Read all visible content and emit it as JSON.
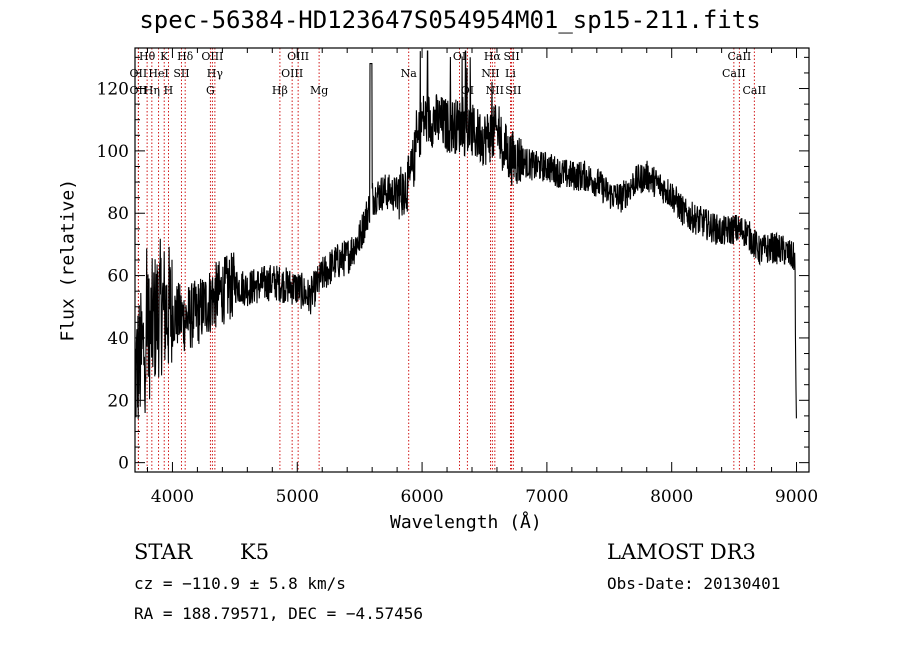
{
  "chart_data": {
    "type": "line",
    "title": "spec-56384-HD123647S054954M01_sp15-211.fits",
    "xlabel": "Wavelength (Å)",
    "ylabel": "Flux (relative)",
    "xlim": [
      3700,
      9100
    ],
    "ylim": [
      -3,
      133
    ],
    "x_ticks": [
      4000,
      5000,
      6000,
      7000,
      8000,
      9000
    ],
    "y_ticks": [
      0,
      20,
      40,
      60,
      80,
      100,
      120
    ],
    "x_tick_labels": [
      "4000",
      "5000",
      "6000",
      "7000",
      "8000",
      "9000"
    ],
    "y_tick_labels": [
      "0",
      "20",
      "40",
      "60",
      "80",
      "100",
      "120"
    ],
    "grid": false,
    "spectrum_envelope": {
      "x": [
        3700,
        3800,
        3900,
        4000,
        4100,
        4200,
        4300,
        4400,
        4500,
        4600,
        4700,
        4800,
        4900,
        5000,
        5100,
        5200,
        5300,
        5400,
        5500,
        5600,
        5700,
        5800,
        5900,
        6000,
        6100,
        6200,
        6300,
        6400,
        6500,
        6600,
        6700,
        6800,
        6900,
        7000,
        7100,
        7200,
        7300,
        7400,
        7500,
        7600,
        7700,
        7800,
        7900,
        8000,
        8100,
        8200,
        8300,
        8400,
        8500,
        8600,
        8700,
        8800,
        8900,
        9000
      ],
      "y": [
        28,
        40,
        50,
        48,
        46,
        48,
        52,
        55,
        57,
        56,
        57,
        58,
        57,
        56,
        53,
        60,
        64,
        66,
        72,
        85,
        87,
        86,
        90,
        110,
        110,
        108,
        108,
        106,
        104,
        106,
        98,
        97,
        95,
        95,
        93,
        92,
        92,
        90,
        86,
        85,
        90,
        92,
        89,
        86,
        80,
        78,
        76,
        74,
        75,
        74,
        68,
        69,
        68,
        65
      ]
    },
    "line_markers": [
      {
        "label": "OII",
        "x": 3727,
        "row": 2
      },
      {
        "label": "Hθ",
        "x": 3797,
        "row": 1
      },
      {
        "label": "OII",
        "x": 3727,
        "row": 3
      },
      {
        "label": "Hη",
        "x": 3835,
        "row": 3
      },
      {
        "label": "HeI",
        "x": 3889,
        "row": 2
      },
      {
        "label": "K",
        "x": 3934,
        "row": 1
      },
      {
        "label": "H",
        "x": 3968,
        "row": 3
      },
      {
        "label": "SII",
        "x": 4072,
        "row": 2
      },
      {
        "label": "Hδ",
        "x": 4102,
        "row": 1
      },
      {
        "label": "OIII",
        "x": 4320,
        "row": 1
      },
      {
        "label": "Hγ",
        "x": 4340,
        "row": 2
      },
      {
        "label": "G",
        "x": 4304,
        "row": 3
      },
      {
        "label": "Hβ",
        "x": 4861,
        "row": 3
      },
      {
        "label": "OIII",
        "x": 4959,
        "row": 2
      },
      {
        "label": "OIII",
        "x": 5007,
        "row": 1
      },
      {
        "label": "Mg",
        "x": 5175,
        "row": 3
      },
      {
        "label": "Na",
        "x": 5893,
        "row": 2
      },
      {
        "label": "OI",
        "x": 6300,
        "row": 1
      },
      {
        "label": "OI",
        "x": 6363,
        "row": 3
      },
      {
        "label": "Hα",
        "x": 6563,
        "row": 1
      },
      {
        "label": "NII",
        "x": 6548,
        "row": 2
      },
      {
        "label": "NII",
        "x": 6583,
        "row": 3
      },
      {
        "label": "SII",
        "x": 6717,
        "row": 1
      },
      {
        "label": "Li",
        "x": 6708,
        "row": 2
      },
      {
        "label": "SII",
        "x": 6731,
        "row": 3
      },
      {
        "label": "CaII",
        "x": 8498,
        "row": 2
      },
      {
        "label": "CaII",
        "x": 8542,
        "row": 1
      },
      {
        "label": "CaII",
        "x": 8662,
        "row": 3
      }
    ],
    "colors": {
      "spectrum": "#000000",
      "markers": "#cc0000",
      "axes": "#000000"
    }
  },
  "info": {
    "object_class": "STAR",
    "subclass": "K5",
    "survey": "LAMOST DR3",
    "cz": "cz = −110.9 ± 5.8 km/s",
    "obs_date": "Obs-Date: 20130401",
    "coords": "RA = 188.79571, DEC =  −4.57456"
  }
}
